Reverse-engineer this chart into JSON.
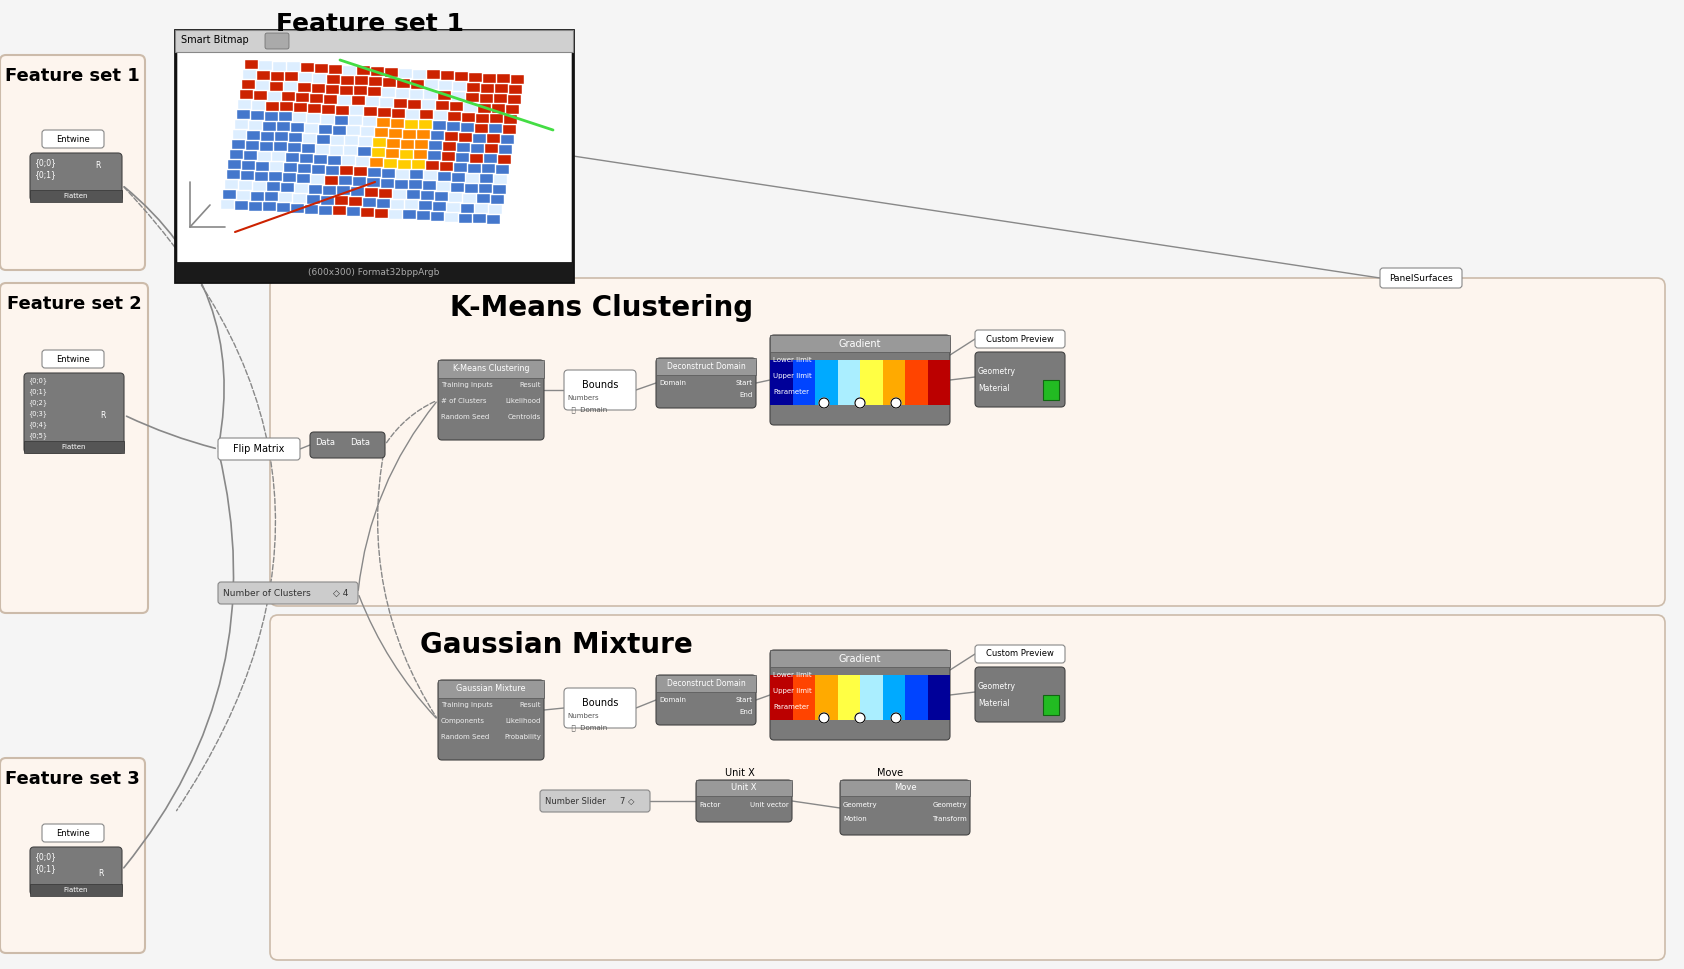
{
  "bg_color": "#f5f5f5",
  "panel_bg": "#fdf5ee",
  "panel_border": "#ccbbaa",
  "wire_color": "#888888",
  "title_color": "#111111",
  "node_gray": "#7a7a7a",
  "node_light": "#999999",
  "node_white": "#ffffff",
  "main_title": "Feature set 1",
  "kmeans_title": "K-Means Clustering",
  "gmix_title": "Gaussian Mixture",
  "feature_sets": [
    "Feature set 1",
    "Feature set 2",
    "Feature set 3"
  ],
  "grad_colors": [
    "#000099",
    "#0044ff",
    "#00aaff",
    "#aaeeff",
    "#ffff44",
    "#ffaa00",
    "#ff4400",
    "#bb0000"
  ],
  "grad_colors2": [
    "#bb0000",
    "#ff4400",
    "#ffaa00",
    "#ffff44",
    "#aaeeff",
    "#00aaff",
    "#0044ff",
    "#000099"
  ]
}
